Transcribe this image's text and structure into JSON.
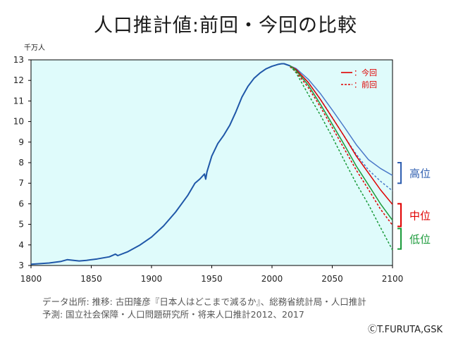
{
  "title": "人口推計値:前回・今回の比較",
  "source_line1": "データ出所: 推移: 古田隆彦『日本人はどこまで減るか』、総務省統計局・人口推計",
  "source_line2": "予測: 国立社会保障・人口問題研究所・将来人口推計2012、2017",
  "copyright": "ⒸT.FURUTA,GSK",
  "chart_data": {
    "type": "line",
    "ylabel": "千万人",
    "xlim": [
      1800,
      2100
    ],
    "ylim": [
      3,
      13
    ],
    "x_ticks": [
      1800,
      1850,
      1900,
      1950,
      2000,
      2050,
      2100
    ],
    "y_ticks": [
      3,
      4,
      5,
      6,
      7,
      8,
      9,
      10,
      11,
      12,
      13
    ],
    "grid": false,
    "plot_background": "#dffbfb",
    "legend": {
      "position": "top-right",
      "items": [
        {
          "label": "：今回",
          "style": "solid",
          "color": "#e00000"
        },
        {
          "label": "：前回",
          "style": "dashed",
          "color": "#e00000"
        }
      ]
    },
    "group_labels": [
      {
        "label": "高位",
        "color": "#2f5fb0",
        "y_range": [
          7.0,
          8.0
        ]
      },
      {
        "label": "中位",
        "color": "#e00000",
        "y_range": [
          4.9,
          6.0
        ]
      },
      {
        "label": "低位",
        "color": "#1a9a3a",
        "y_range": [
          3.8,
          4.8
        ]
      }
    ],
    "series": [
      {
        "id": "historical",
        "color": "#1f57a8",
        "style": "solid",
        "x": [
          1800,
          1815,
          1825,
          1830,
          1840,
          1846,
          1855,
          1865,
          1870,
          1872,
          1880,
          1890,
          1900,
          1910,
          1920,
          1930,
          1936,
          1940,
          1944,
          1945,
          1946,
          1950,
          1955,
          1960,
          1965,
          1970,
          1975,
          1980,
          1985,
          1990,
          1995,
          2000,
          2005,
          2008,
          2010,
          2015
        ],
        "y": [
          3.06,
          3.12,
          3.2,
          3.28,
          3.22,
          3.25,
          3.32,
          3.42,
          3.55,
          3.48,
          3.66,
          3.98,
          4.38,
          4.92,
          5.6,
          6.4,
          7.0,
          7.2,
          7.45,
          7.2,
          7.55,
          8.32,
          8.93,
          9.34,
          9.83,
          10.47,
          11.19,
          11.71,
          12.1,
          12.36,
          12.56,
          12.69,
          12.78,
          12.81,
          12.81,
          12.71
        ]
      },
      {
        "id": "2017-high",
        "color": "#4a78c8",
        "style": "solid",
        "x": [
          2015,
          2020,
          2030,
          2040,
          2050,
          2060,
          2070,
          2080,
          2090,
          2100
        ],
        "y": [
          12.71,
          12.58,
          12.06,
          11.37,
          10.56,
          9.73,
          8.87,
          8.15,
          7.72,
          7.38
        ]
      },
      {
        "id": "2012-high",
        "color": "#4a78c8",
        "style": "dashed",
        "x": [
          2015,
          2020,
          2030,
          2040,
          2050,
          2060,
          2070,
          2080,
          2090,
          2100
        ],
        "y": [
          12.71,
          12.52,
          11.9,
          11.1,
          10.2,
          9.27,
          8.4,
          7.65,
          7.1,
          6.63
        ]
      },
      {
        "id": "2017-medium",
        "color": "#e00000",
        "style": "solid",
        "x": [
          2015,
          2020,
          2030,
          2040,
          2050,
          2060,
          2070,
          2080,
          2090,
          2100
        ],
        "y": [
          12.71,
          12.53,
          11.91,
          11.09,
          10.19,
          9.28,
          8.32,
          7.5,
          6.68,
          5.97
        ]
      },
      {
        "id": "2012-medium",
        "color": "#e00000",
        "style": "dashed",
        "x": [
          2015,
          2020,
          2030,
          2040,
          2050,
          2060,
          2070,
          2080,
          2090,
          2100
        ],
        "y": [
          12.66,
          12.41,
          11.66,
          10.73,
          9.71,
          8.67,
          7.63,
          6.7,
          5.74,
          4.96
        ]
      },
      {
        "id": "2017-low",
        "color": "#1a9a3a",
        "style": "solid",
        "x": [
          2015,
          2020,
          2030,
          2040,
          2050,
          2060,
          2070,
          2080,
          2090,
          2100
        ],
        "y": [
          12.71,
          12.48,
          11.78,
          10.86,
          9.87,
          8.87,
          7.83,
          6.92,
          6.0,
          5.2
        ]
      },
      {
        "id": "2012-low",
        "color": "#1a9a3a",
        "style": "dashed",
        "x": [
          2015,
          2020,
          2030,
          2040,
          2050,
          2060,
          2070,
          2080,
          2090,
          2100
        ],
        "y": [
          12.71,
          12.37,
          11.33,
          10.33,
          9.25,
          8.1,
          6.98,
          5.97,
          4.85,
          3.75
        ]
      }
    ]
  }
}
